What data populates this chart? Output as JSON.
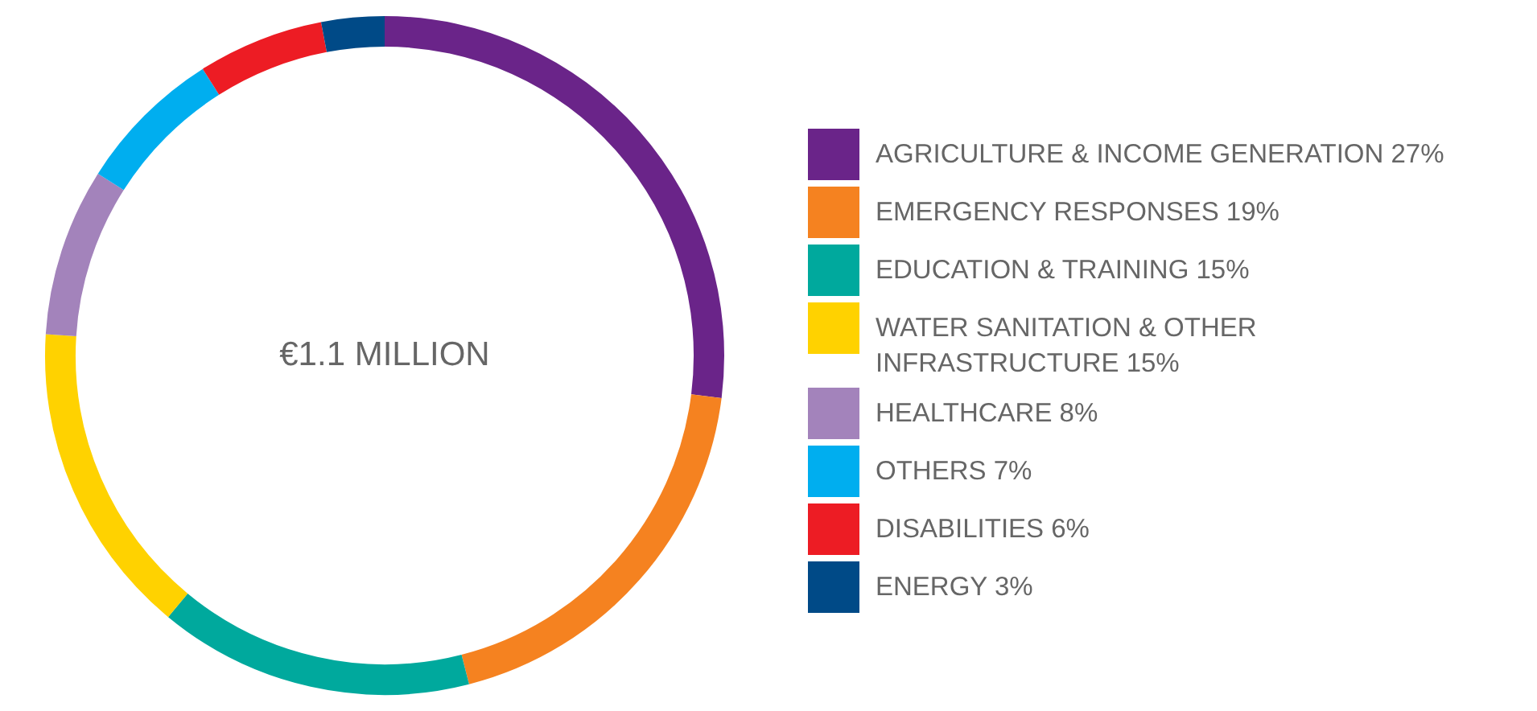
{
  "chart_data": {
    "type": "donut",
    "categories": [
      "AGRICULTURE & INCOME GENERATION",
      "EMERGENCY RESPONSES",
      "EDUCATION & TRAINING",
      "WATER SANITATION & OTHER INFRASTRUCTURE",
      "HEALTHCARE",
      "OTHERS",
      "DISABILITIES",
      "ENERGY"
    ],
    "values": [
      27,
      19,
      15,
      15,
      8,
      7,
      6,
      3
    ],
    "value_labels": [
      "27%",
      "19%",
      "15%",
      "15%",
      "8%",
      "7%",
      "6%",
      "3%"
    ],
    "colors": [
      "#6a2489",
      "#f58220",
      "#00a99d",
      "#ffd200",
      "#a383bb",
      "#00aeef",
      "#ed1c24",
      "#004a87"
    ],
    "annotations": [
      "€1.1 MILLION"
    ],
    "legend": "right"
  }
}
